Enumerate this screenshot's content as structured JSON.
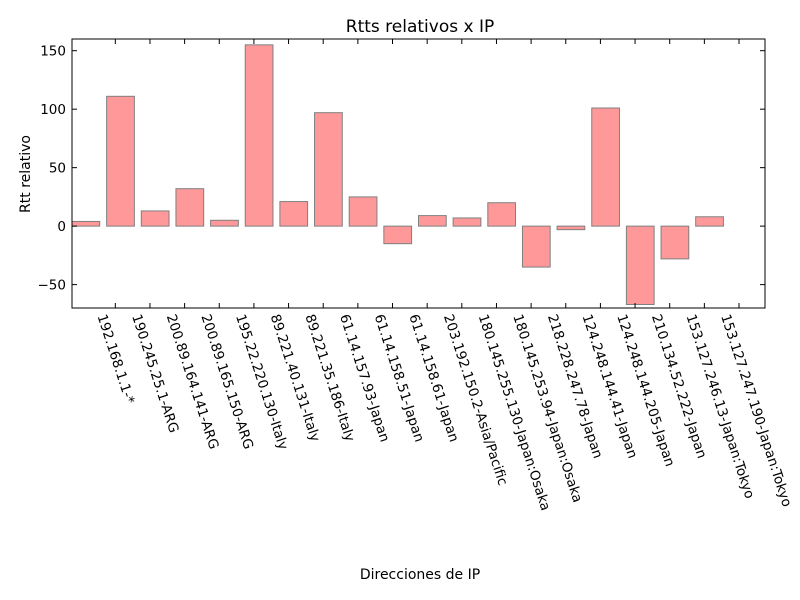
{
  "chart_data": {
    "type": "bar",
    "title": "Rtts relativos x IP",
    "xlabel": "Direcciones de IP",
    "ylabel": "Rtt relativo",
    "ylim": [
      -70,
      160
    ],
    "yticks": [
      -50,
      0,
      50,
      100,
      150
    ],
    "ytick_labels": [
      "−50",
      "0",
      "50",
      "100",
      "150"
    ],
    "grid": false,
    "bar_color": "#ff9999",
    "bar_edge_color": "#7f7f7f",
    "categories": [
      "192.168.1.1-*",
      "190.245.25.1-ARG",
      "200.89.164.141-ARG",
      "200.89.165.150-ARG",
      "195.22.220.130-Italy",
      "89.221.40.131-Italy",
      "89.221.35.186-Italy",
      "61.14.157.93-Japan",
      "61.14.158.51-Japan",
      "61.14.158.61-Japan",
      "203.192.150.2-Asia/Pacific",
      "180.145.255.130-Japan:Osaka",
      "180.145.253.94-Japan:Osaka",
      "218.228.247.78-Japan",
      "124.248.144.41-Japan",
      "124.248.144.205-Japan",
      "210.134.52.222-Japan",
      "153.127.246.13-Japan:Tokyo",
      "153.127.247.190-Japan:Tokyo"
    ],
    "values": [
      4,
      111,
      13,
      32,
      5,
      155,
      21,
      97,
      25,
      -15,
      9,
      7,
      20,
      -35,
      -3,
      101,
      -67,
      -28,
      8
    ]
  }
}
